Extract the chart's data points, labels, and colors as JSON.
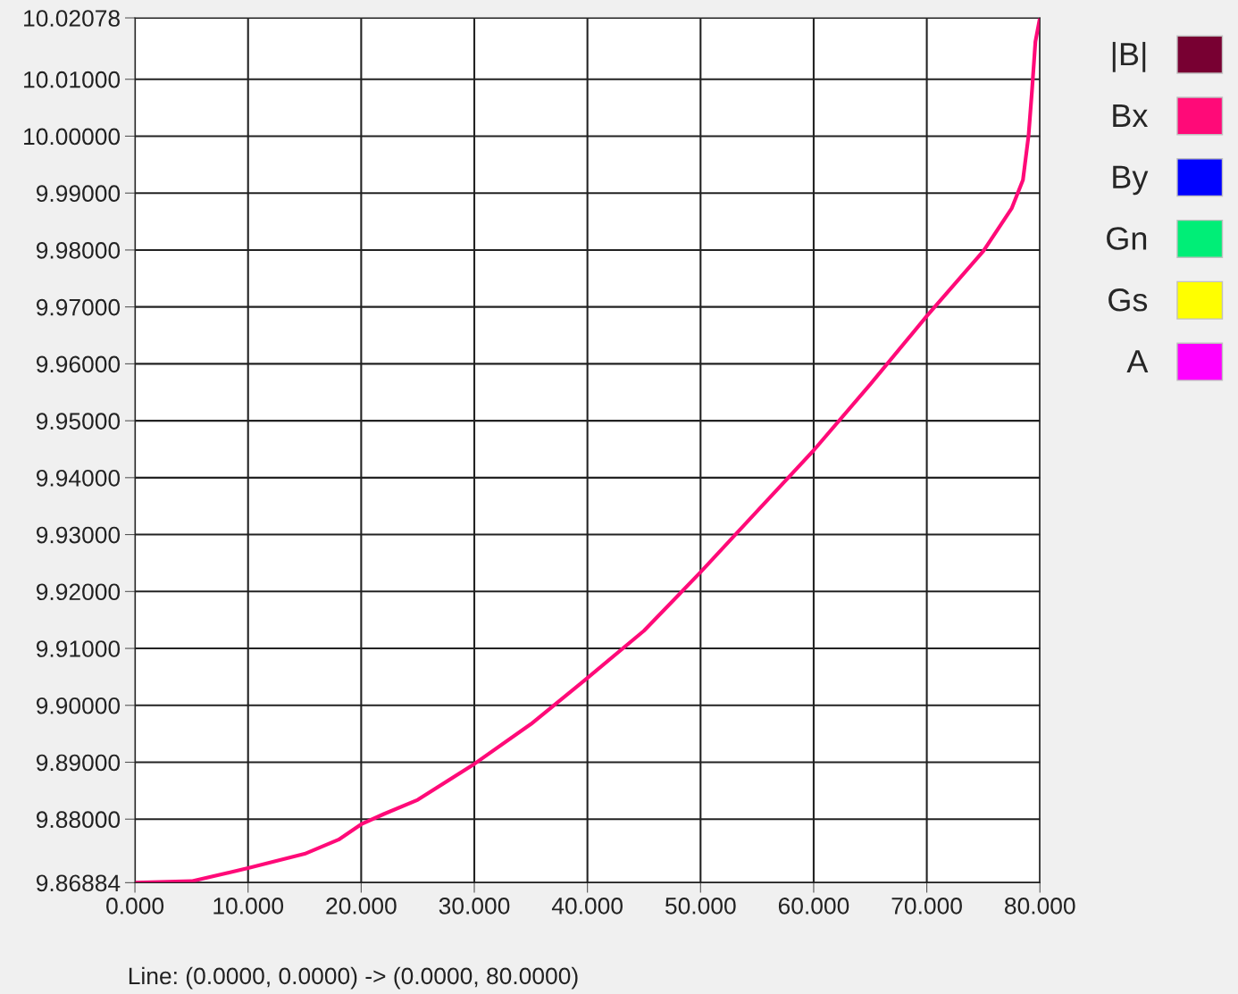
{
  "chart_data": {
    "type": "line",
    "x": [
      0,
      5,
      10,
      15,
      18,
      20,
      22,
      25,
      30,
      35,
      40,
      45,
      50,
      55,
      60,
      65,
      70,
      75,
      77.5,
      78.5,
      79,
      79.3,
      79.6,
      80
    ],
    "series": [
      {
        "name": "|B|",
        "color": "#780032",
        "values": [
          null,
          null,
          null,
          null,
          null,
          null,
          null,
          null,
          null,
          null,
          null,
          null,
          null,
          null,
          null,
          null,
          null,
          null,
          null,
          null,
          null,
          null,
          null,
          null
        ]
      },
      {
        "name": "Bx",
        "color": "#ff0a78",
        "values": [
          9.86884,
          9.8691,
          9.8714,
          9.8739,
          9.8764,
          9.8791,
          9.8809,
          9.8834,
          9.8897,
          9.8967,
          9.9048,
          9.9131,
          9.9234,
          9.9341,
          9.9448,
          9.9564,
          9.9684,
          9.9798,
          9.9873,
          9.9923,
          10.0002,
          10.008,
          10.0166,
          10.02078
        ]
      },
      {
        "name": "By",
        "color": "#0000ff",
        "values": [
          null,
          null,
          null,
          null,
          null,
          null,
          null,
          null,
          null,
          null,
          null,
          null,
          null,
          null,
          null,
          null,
          null,
          null,
          null,
          null,
          null,
          null,
          null,
          null
        ]
      },
      {
        "name": "Gn",
        "color": "#00ee77",
        "values": [
          null,
          null,
          null,
          null,
          null,
          null,
          null,
          null,
          null,
          null,
          null,
          null,
          null,
          null,
          null,
          null,
          null,
          null,
          null,
          null,
          null,
          null,
          null,
          null
        ]
      },
      {
        "name": "Gs",
        "color": "#ffff00",
        "values": [
          null,
          null,
          null,
          null,
          null,
          null,
          null,
          null,
          null,
          null,
          null,
          null,
          null,
          null,
          null,
          null,
          null,
          null,
          null,
          null,
          null,
          null,
          null,
          null
        ]
      },
      {
        "name": "A",
        "color": "#ff00ff",
        "values": [
          null,
          null,
          null,
          null,
          null,
          null,
          null,
          null,
          null,
          null,
          null,
          null,
          null,
          null,
          null,
          null,
          null,
          null,
          null,
          null,
          null,
          null,
          null,
          null
        ]
      }
    ],
    "xlim": [
      0,
      80
    ],
    "xticks": [
      {
        "value": 0,
        "label": "0.000"
      },
      {
        "value": 10,
        "label": "10.000"
      },
      {
        "value": 20,
        "label": "20.000"
      },
      {
        "value": 30,
        "label": "30.000"
      },
      {
        "value": 40,
        "label": "40.000"
      },
      {
        "value": 50,
        "label": "50.000"
      },
      {
        "value": 60,
        "label": "60.000"
      },
      {
        "value": 70,
        "label": "70.000"
      },
      {
        "value": 80,
        "label": "80.000"
      }
    ],
    "ylim": [
      9.86884,
      10.02078
    ],
    "yticks": [
      {
        "value": 9.86884,
        "label": "9.86884"
      },
      {
        "value": 9.88,
        "label": "9.88000"
      },
      {
        "value": 9.89,
        "label": "9.89000"
      },
      {
        "value": 9.9,
        "label": "9.90000"
      },
      {
        "value": 9.91,
        "label": "9.91000"
      },
      {
        "value": 9.92,
        "label": "9.92000"
      },
      {
        "value": 9.93,
        "label": "9.93000"
      },
      {
        "value": 9.94,
        "label": "9.94000"
      },
      {
        "value": 9.95,
        "label": "9.95000"
      },
      {
        "value": 9.96,
        "label": "9.96000"
      },
      {
        "value": 9.97,
        "label": "9.97000"
      },
      {
        "value": 9.98,
        "label": "9.98000"
      },
      {
        "value": 9.99,
        "label": "9.99000"
      },
      {
        "value": 10.0,
        "label": "10.00000"
      },
      {
        "value": 10.01,
        "label": "10.01000"
      },
      {
        "value": 10.02078,
        "label": "10.02078"
      }
    ],
    "grid": true,
    "legend": "right",
    "line_style": "solid",
    "marker": "none",
    "annotations": [
      "Line: (0.0000, 0.0000) -> (0.0000, 80.0000)"
    ]
  }
}
